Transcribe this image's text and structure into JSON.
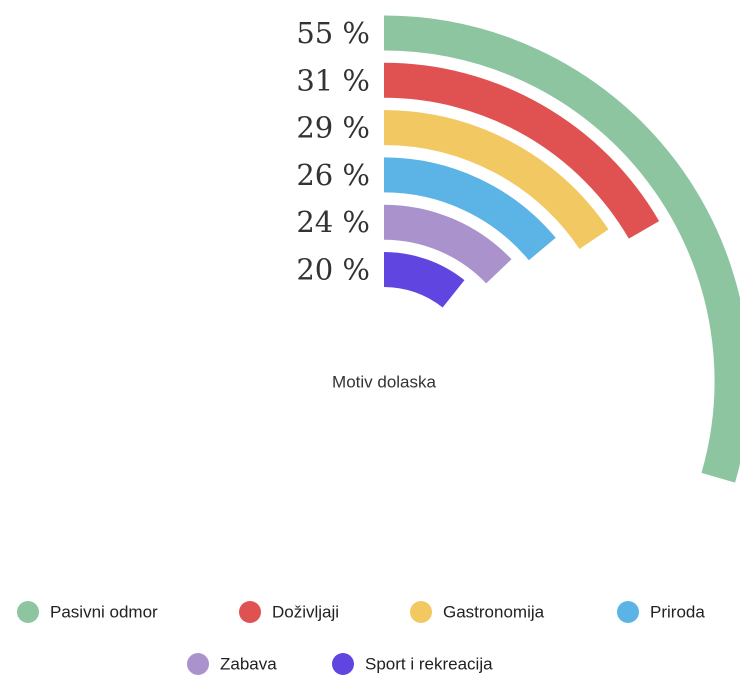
{
  "chart_data": {
    "type": "radial_bar",
    "title": "Motiv dolaska",
    "categories": [
      "Pasivni odmor",
      "Doživljaji",
      "Gastronomija",
      "Priroda",
      "Zabava",
      "Sport i rekreacija"
    ],
    "values": [
      55,
      31,
      29,
      26,
      24,
      20
    ],
    "value_labels": [
      "55 %",
      "31 %",
      "29 %",
      "26 %",
      "24 %",
      "20 %"
    ],
    "colors": [
      "#8cc5a0",
      "#e05252",
      "#f2c862",
      "#5bb4e5",
      "#aa92cc",
      "#6045e0"
    ],
    "legend": "bottom"
  }
}
